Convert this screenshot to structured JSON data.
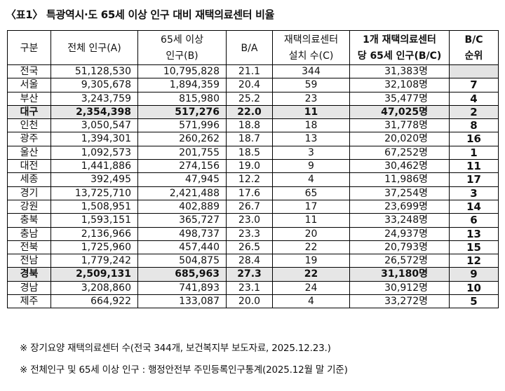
{
  "title": "〈표1〉 특광역시·도 65세 이상 인구 대비 재택의료센터 비율",
  "headers": {
    "region": "구분",
    "total_pop": "전체 인구(A)",
    "elderly_pop_line1": "65세 이상",
    "elderly_pop_line2": "인구(B)",
    "ratio": "B/A",
    "centers_line1": "재택의료센터",
    "centers_line2": "설치 수(C)",
    "per_center_line1": "1개 재택의료센터",
    "per_center_line2": "당 65세 인구(B/C)",
    "rank_line1": "B/C",
    "rank_line2": "순위"
  },
  "rows": [
    {
      "region": "전국",
      "total": "51,128,530",
      "elderly": "10,795,828",
      "ratio": "21.1",
      "centers": "344",
      "per_center": "31,383명",
      "rank": "",
      "highlight": false
    },
    {
      "region": "서울",
      "total": "9,305,678",
      "elderly": "1,894,359",
      "ratio": "20.4",
      "centers": "59",
      "per_center": "32,108명",
      "rank": "7",
      "highlight": false
    },
    {
      "region": "부산",
      "total": "3,243,759",
      "elderly": "815,980",
      "ratio": "25.2",
      "centers": "23",
      "per_center": "35,477명",
      "rank": "4",
      "highlight": false
    },
    {
      "region": "대구",
      "total": "2,354,398",
      "elderly": "517,276",
      "ratio": "22.0",
      "centers": "11",
      "per_center": "47,025명",
      "rank": "2",
      "highlight": true
    },
    {
      "region": "인천",
      "total": "3,050,547",
      "elderly": "571,996",
      "ratio": "18.8",
      "centers": "18",
      "per_center": "31,778명",
      "rank": "8",
      "highlight": false
    },
    {
      "region": "광주",
      "total": "1,394,301",
      "elderly": "260,262",
      "ratio": "18.7",
      "centers": "13",
      "per_center": "20,020명",
      "rank": "16",
      "highlight": false
    },
    {
      "region": "울산",
      "total": "1,092,573",
      "elderly": "201,755",
      "ratio": "18.5",
      "centers": "3",
      "per_center": "67,252명",
      "rank": "1",
      "highlight": false
    },
    {
      "region": "대전",
      "total": "1,441,886",
      "elderly": "274,156",
      "ratio": "19.0",
      "centers": "9",
      "per_center": "30,462명",
      "rank": "11",
      "highlight": false
    },
    {
      "region": "세종",
      "total": "392,495",
      "elderly": "47,945",
      "ratio": "12.2",
      "centers": "4",
      "per_center": "11,986명",
      "rank": "17",
      "highlight": false
    },
    {
      "region": "경기",
      "total": "13,725,710",
      "elderly": "2,421,488",
      "ratio": "17.6",
      "centers": "65",
      "per_center": "37,254명",
      "rank": "3",
      "highlight": false
    },
    {
      "region": "강원",
      "total": "1,508,951",
      "elderly": "402,889",
      "ratio": "26.7",
      "centers": "17",
      "per_center": "23,699명",
      "rank": "14",
      "highlight": false
    },
    {
      "region": "충북",
      "total": "1,593,151",
      "elderly": "365,727",
      "ratio": "23.0",
      "centers": "11",
      "per_center": "33,248명",
      "rank": "6",
      "highlight": false
    },
    {
      "region": "충남",
      "total": "2,136,966",
      "elderly": "498,737",
      "ratio": "23.3",
      "centers": "20",
      "per_center": "24,937명",
      "rank": "13",
      "highlight": false
    },
    {
      "region": "전북",
      "total": "1,725,960",
      "elderly": "457,440",
      "ratio": "26.5",
      "centers": "22",
      "per_center": "20,793명",
      "rank": "15",
      "highlight": false
    },
    {
      "region": "전남",
      "total": "1,779,242",
      "elderly": "504,875",
      "ratio": "28.4",
      "centers": "19",
      "per_center": "26,572명",
      "rank": "12",
      "highlight": false
    },
    {
      "region": "경북",
      "total": "2,509,131",
      "elderly": "685,963",
      "ratio": "27.3",
      "centers": "22",
      "per_center": "31,180명",
      "rank": "9",
      "highlight": true
    },
    {
      "region": "경남",
      "total": "3,208,860",
      "elderly": "741,893",
      "ratio": "23.1",
      "centers": "24",
      "per_center": "30,912명",
      "rank": "10",
      "highlight": false
    },
    {
      "region": "제주",
      "total": "664,922",
      "elderly": "133,087",
      "ratio": "20.0",
      "centers": "4",
      "per_center": "33,272명",
      "rank": "5",
      "highlight": false
    }
  ],
  "notes": [
    "※  장기요양 재택의료센터 수(전국 344개, 보건복지부 보도자료, 2025.12.23.)",
    "※  전체인구 및 65세 이상 인구 : 행정안전부 주민등록인구통계(2025.12월 말 기준)"
  ],
  "colors": {
    "highlight_row": "#e6e6e6",
    "border": "#000000",
    "empty_rank_cell": "#e3e3e3"
  }
}
